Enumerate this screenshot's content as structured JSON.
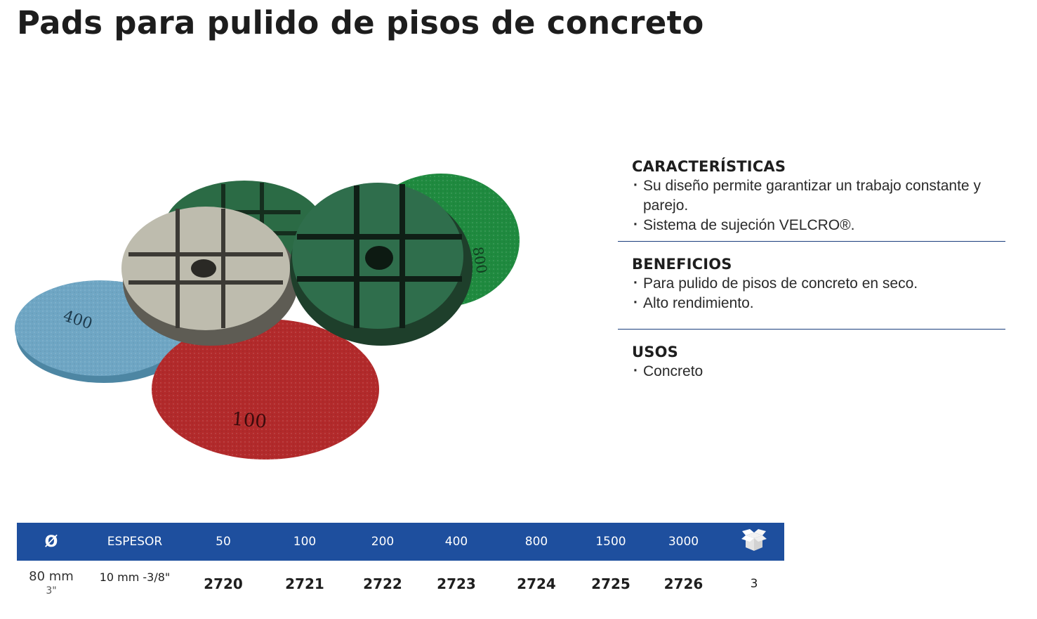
{
  "page": {
    "title": "Pads para pulido de pisos de concreto"
  },
  "photo": {
    "pads": [
      {
        "label": "400",
        "color": "#6fa6c4"
      },
      {
        "label": "100",
        "color": "#b22a2b"
      },
      {
        "label": "800",
        "color": "#1f8a3f"
      }
    ]
  },
  "info": {
    "caracteristicas": {
      "heading": "CARACTERÍSTICAS",
      "items": [
        "Su diseño permite garantizar un trabajo constante y parejo.",
        "Sistema de sujeción VELCRO®."
      ]
    },
    "beneficios": {
      "heading": "BENEFICIOS",
      "items": [
        "Para pulido de pisos de concreto en seco.",
        "Alto rendimiento."
      ]
    },
    "usos": {
      "heading": "USOS",
      "items": [
        "Concreto"
      ]
    }
  },
  "table": {
    "header_color": "#1e4f9e",
    "headers": {
      "diameter": "Ø",
      "thickness": "ESPESOR",
      "grits": [
        "50",
        "100",
        "200",
        "400",
        "800",
        "1500",
        "3000"
      ],
      "pack_icon": "box-icon"
    },
    "row": {
      "diameter_mm": "80 mm",
      "diameter_in": "3\"",
      "thickness": "10 mm -3/8\"",
      "codes": [
        "2720",
        "2721",
        "2722",
        "2723",
        "2724",
        "2725",
        "2726"
      ],
      "pack": "3"
    }
  }
}
